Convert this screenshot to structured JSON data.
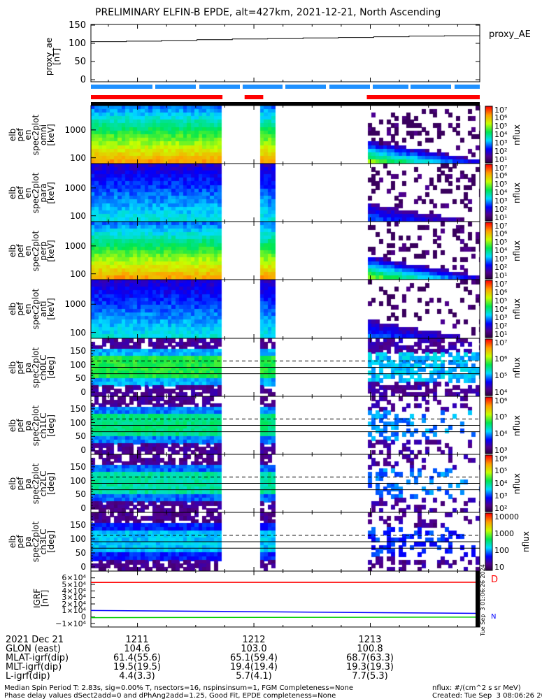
{
  "title": "PRELIMINARY ELFIN-B EPDE, alt=427km, 2021-12-21, North Ascending",
  "colors": {
    "red_bar": "#ff0000",
    "blue_bar": "#1e90ff",
    "igrf_red": "#ff0000",
    "igrf_blue": "#0000ff",
    "igrf_green": "#00cc00"
  },
  "chart_data": {
    "type": "heatmap",
    "time_axis": {
      "unit": "UT hhmm",
      "range_min": [
        1210.6,
        1213.94
      ],
      "ticks": [
        "1211",
        "1212",
        "1213"
      ],
      "tick_minutes": [
        1211,
        1212,
        1213
      ]
    },
    "data_intervals_min": [
      [
        1210.6,
        1211.72
      ],
      [
        1211.86,
        1211.88
      ],
      [
        1212.04,
        1212.17
      ],
      [
        1212.56,
        1212.58
      ],
      [
        1212.97,
        1213.94
      ]
    ],
    "red_bar_intervals_min": [
      [
        1210.6,
        1211.73
      ],
      [
        1211.92,
        1212.08
      ],
      [
        1212.97,
        1213.94
      ]
    ],
    "proxy_ae": {
      "ylabel": "proxy_ae\n[nT]",
      "legend": "proxy_AE",
      "yticks": [
        "150",
        "100",
        "50",
        "0"
      ],
      "ylim": [
        0,
        150
      ],
      "values": [
        104.6,
        106,
        108,
        110,
        112,
        113,
        115,
        116,
        118,
        120,
        121,
        122
      ]
    },
    "spectrograms": [
      {
        "ylabel": "elb\npef\nen\nspec2plot\nomni\n[keV]",
        "kind": "energy",
        "yticks": [
          "1000",
          "100"
        ],
        "cbar": [
          "10⁷",
          "10⁶",
          "10⁵",
          "10⁴",
          "10³",
          "10²",
          "10¹"
        ],
        "cbar_label": "nflux",
        "level": 1.0
      },
      {
        "ylabel": "elb\npef\nen\nspec2plot\npara\n[keV]",
        "kind": "energy",
        "yticks": [
          "1000",
          "100"
        ],
        "cbar": [
          "10⁷",
          "10⁶",
          "10⁵",
          "10⁴",
          "10³",
          "10²",
          "10¹"
        ],
        "cbar_label": "nflux",
        "level": 0.45
      },
      {
        "ylabel": "elb\npef\nen\nspec2plot\nperp\n[keV]",
        "kind": "energy",
        "yticks": [
          "1000",
          "100"
        ],
        "cbar": [
          "10⁷",
          "10⁶",
          "10⁵",
          "10⁴",
          "10³",
          "10²",
          "10¹"
        ],
        "cbar_label": "nflux",
        "level": 1.0
      },
      {
        "ylabel": "elb\npef\nen\nspec2plot\nanti\n[keV]",
        "kind": "energy",
        "yticks": [
          "1000",
          "100"
        ],
        "cbar": [
          "10⁷",
          "10⁶",
          "10⁵",
          "10⁴",
          "10³",
          "10²",
          "10¹"
        ],
        "cbar_label": "nflux",
        "level": 0.45
      },
      {
        "ylabel": "elb\npef\npa\nspec2plot\nch0LC\n[deg]",
        "kind": "pa",
        "yticks": [
          "150",
          "100",
          "50",
          "0"
        ],
        "cbar": [
          "10⁷",
          "10⁶",
          "10⁵",
          "10⁴"
        ],
        "cbar_label": "nflux",
        "level": 0.8
      },
      {
        "ylabel": "elb\npef\npa\nspec2plot\nch1LC\n[deg]",
        "kind": "pa",
        "yticks": [
          "150",
          "100",
          "50",
          "0"
        ],
        "cbar": [
          "10⁶",
          "10⁵",
          "10⁴",
          "10³"
        ],
        "cbar_label": "nflux",
        "level": 0.7
      },
      {
        "ylabel": "elb\npef\npa\nspec2plot\nch2LC\n[deg]",
        "kind": "pa",
        "yticks": [
          "150",
          "100",
          "50",
          "0"
        ],
        "cbar": [
          "10⁶",
          "10⁵",
          "10⁴",
          "10³",
          "10²"
        ],
        "cbar_label": "nflux",
        "level": 0.65
      },
      {
        "ylabel": "elb\npef\npa\nspec2plot\nch3LC\n[deg]",
        "kind": "pa",
        "yticks": [
          "150",
          "100",
          "50",
          "0"
        ],
        "cbar": [
          "10000",
          "1000",
          "100",
          "10"
        ],
        "cbar_label": "nflux",
        "level": 0.5
      }
    ],
    "igrf": {
      "ylabel": "IGRF\n[nT]",
      "yticks": [
        "6×10⁴",
        "5×10⁴",
        "4×10⁴",
        "3×10⁴",
        "2×10⁴",
        "1×10⁴",
        "0",
        "−1×10⁴"
      ],
      "ylim": [
        -10000,
        65000
      ],
      "series": [
        {
          "name": "D",
          "color": "#ff0000",
          "values": [
            53000,
            53200
          ]
        },
        {
          "name": "N",
          "color": "#0000ff",
          "values": [
            10000,
            5500
          ]
        },
        {
          "name": "Z",
          "color": "#00cc00",
          "values": [
            -1000,
            -200
          ]
        }
      ],
      "side_labels": [
        "D",
        "N"
      ]
    }
  },
  "footer": {
    "rows": [
      {
        "label": "2021 Dec 21",
        "v": [
          "1211",
          "1212",
          "1213"
        ]
      },
      {
        "label": "GLON (east)",
        "v": [
          "104.6",
          "103.0",
          "100.8"
        ]
      },
      {
        "label": "MLAT-igrf(dip)",
        "v": [
          "61.4(55.6)",
          "65.1(59.4)",
          "68.7(63.3)"
        ]
      },
      {
        "label": "MLT-igrf(dip)",
        "v": [
          "19.5(19.5)",
          "19.4(19.4)",
          "19.3(19.3)"
        ]
      },
      {
        "label": "L-igrf(dip)",
        "v": [
          "4.4(3.3)",
          "5.7(4.1)",
          "7.7(5.3)"
        ]
      }
    ],
    "note1": "Median Spin Period T: 2.83s, sig=0.00% T, nsectors=16, nspinsinsum=1, FGM Completeness=None",
    "note2": "Phase delay values dSect2add=0 and dPhAng2add=1.25, Good Fit, EPDE completeness=None",
    "units": "nflux: #/(cm^2 s sr MeV)",
    "created": "Created: Tue Sep  3 08:06:26 2024",
    "side_stamp": "Tue Sep  3 01:06:26 2024"
  }
}
